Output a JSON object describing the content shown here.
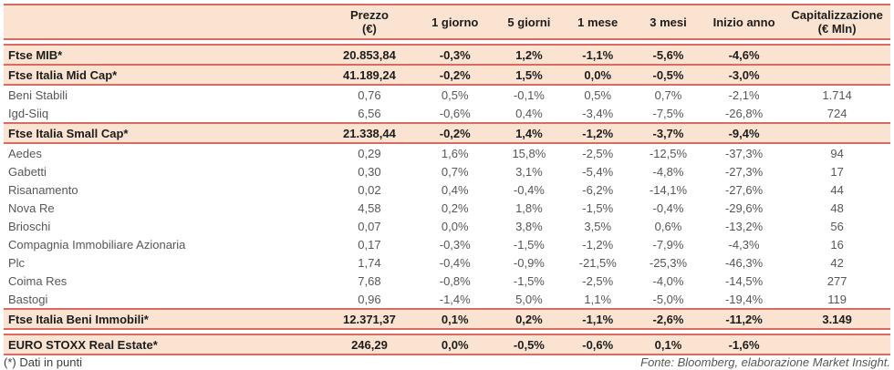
{
  "chart_data": {
    "type": "table",
    "title": "",
    "columns": [
      "",
      "Prezzo\n(€)",
      "1 giorno",
      "5 giorni",
      "1 mese",
      "3 mesi",
      "Inizio anno",
      "Capitalizzazione\n(€ Mln)"
    ],
    "rows": [
      {
        "name": "Ftse MIB*",
        "style": "index",
        "gap_before": false,
        "values": [
          "20.853,84",
          "-0,3%",
          "1,2%",
          "-1,1%",
          "-5,6%",
          "-4,6%",
          ""
        ]
      },
      {
        "name": "Ftse Italia Mid Cap*",
        "style": "index",
        "gap_before": false,
        "values": [
          "41.189,24",
          "-0,2%",
          "1,5%",
          "0,0%",
          "-0,5%",
          "-3,0%",
          ""
        ]
      },
      {
        "name": "Beni Stabili",
        "style": "stock",
        "gap_before": false,
        "values": [
          "0,76",
          "0,5%",
          "-0,1%",
          "0,5%",
          "0,7%",
          "-2,1%",
          "1.714"
        ]
      },
      {
        "name": "Igd-Siiq",
        "style": "stock",
        "gap_before": false,
        "values": [
          "6,56",
          "-0,6%",
          "0,4%",
          "-3,4%",
          "-7,5%",
          "-26,8%",
          "724"
        ]
      },
      {
        "name": "Ftse Italia Small Cap*",
        "style": "index",
        "gap_before": false,
        "values": [
          "21.338,44",
          "-0,2%",
          "1,4%",
          "-1,2%",
          "-3,7%",
          "-9,4%",
          ""
        ]
      },
      {
        "name": "Aedes",
        "style": "stock",
        "gap_before": false,
        "values": [
          "0,29",
          "1,6%",
          "15,8%",
          "-2,5%",
          "-12,5%",
          "-37,3%",
          "94"
        ]
      },
      {
        "name": "Gabetti",
        "style": "stock",
        "gap_before": false,
        "values": [
          "0,30",
          "0,7%",
          "3,1%",
          "-5,4%",
          "-4,8%",
          "-27,3%",
          "17"
        ]
      },
      {
        "name": "Risanamento",
        "style": "stock",
        "gap_before": false,
        "values": [
          "0,02",
          "0,4%",
          "-0,4%",
          "-6,2%",
          "-14,1%",
          "-27,6%",
          "44"
        ]
      },
      {
        "name": "Nova Re",
        "style": "stock",
        "gap_before": false,
        "values": [
          "4,58",
          "0,2%",
          "1,8%",
          "-1,5%",
          "-0,4%",
          "-29,6%",
          "48"
        ]
      },
      {
        "name": "Brioschi",
        "style": "stock",
        "gap_before": false,
        "values": [
          "0,07",
          "0,0%",
          "3,8%",
          "3,5%",
          "0,6%",
          "-13,2%",
          "56"
        ]
      },
      {
        "name": "Compagnia Immobiliare Azionaria",
        "style": "stock",
        "gap_before": false,
        "values": [
          "0,17",
          "-0,3%",
          "-1,5%",
          "-1,2%",
          "-7,9%",
          "-4,3%",
          "16"
        ]
      },
      {
        "name": "Plc",
        "style": "stock",
        "gap_before": false,
        "values": [
          "1,74",
          "-0,4%",
          "-0,9%",
          "-21,5%",
          "-25,3%",
          "-46,3%",
          "42"
        ]
      },
      {
        "name": "Coima Res",
        "style": "stock",
        "gap_before": false,
        "values": [
          "7,68",
          "-0,8%",
          "-1,5%",
          "-2,5%",
          "-4,0%",
          "-14,5%",
          "277"
        ]
      },
      {
        "name": "Bastogi",
        "style": "stock",
        "gap_before": false,
        "values": [
          "0,96",
          "-1,4%",
          "5,0%",
          "1,1%",
          "-5,0%",
          "-19,4%",
          "119"
        ]
      },
      {
        "name": "Ftse Italia Beni Immobili*",
        "style": "index",
        "gap_before": false,
        "values": [
          "12.371,37",
          "0,1%",
          "0,2%",
          "-1,1%",
          "-2,6%",
          "-11,2%",
          "3.149"
        ]
      },
      {
        "name": "EURO STOXX Real Estate*",
        "style": "index",
        "gap_before": true,
        "values": [
          "246,29",
          "0,0%",
          "-0,5%",
          "-0,6%",
          "0,1%",
          "-1,6%",
          ""
        ]
      }
    ]
  },
  "footer": {
    "note": "(*) Dati in punti",
    "source": "Fonte: Bloomberg, elaborazione Market Insight."
  },
  "colors": {
    "row_highlight": "#fbe3d2",
    "line": "#dd6a60",
    "index_text": "#1d1d1b",
    "stock_text": "#575756"
  }
}
